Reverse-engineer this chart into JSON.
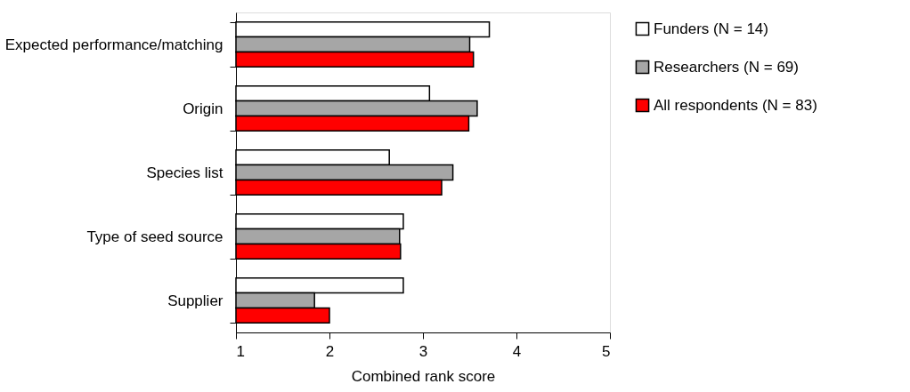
{
  "chart_data": {
    "type": "bar",
    "orientation": "horizontal",
    "xlabel": "Combined rank score",
    "categories": [
      "Expected performance/matching",
      "Origin",
      "Species list",
      "Type of seed source",
      "Supplier"
    ],
    "series": [
      {
        "name": "Funders (N = 14)",
        "color": "#ffffff",
        "values": [
          3.71,
          3.07,
          2.64,
          2.79,
          2.79
        ]
      },
      {
        "name": "Researchers (N = 69)",
        "color": "#a6a6a6",
        "values": [
          3.5,
          3.58,
          3.32,
          2.75,
          1.84
        ]
      },
      {
        "name": "All respondents (N = 83)",
        "color": "#ff0000",
        "values": [
          3.54,
          3.49,
          3.2,
          2.76,
          2.0
        ]
      }
    ],
    "xlim": [
      1,
      5
    ],
    "xticks": [
      1,
      2,
      3,
      4,
      5
    ],
    "grid": false,
    "legend": "right"
  }
}
